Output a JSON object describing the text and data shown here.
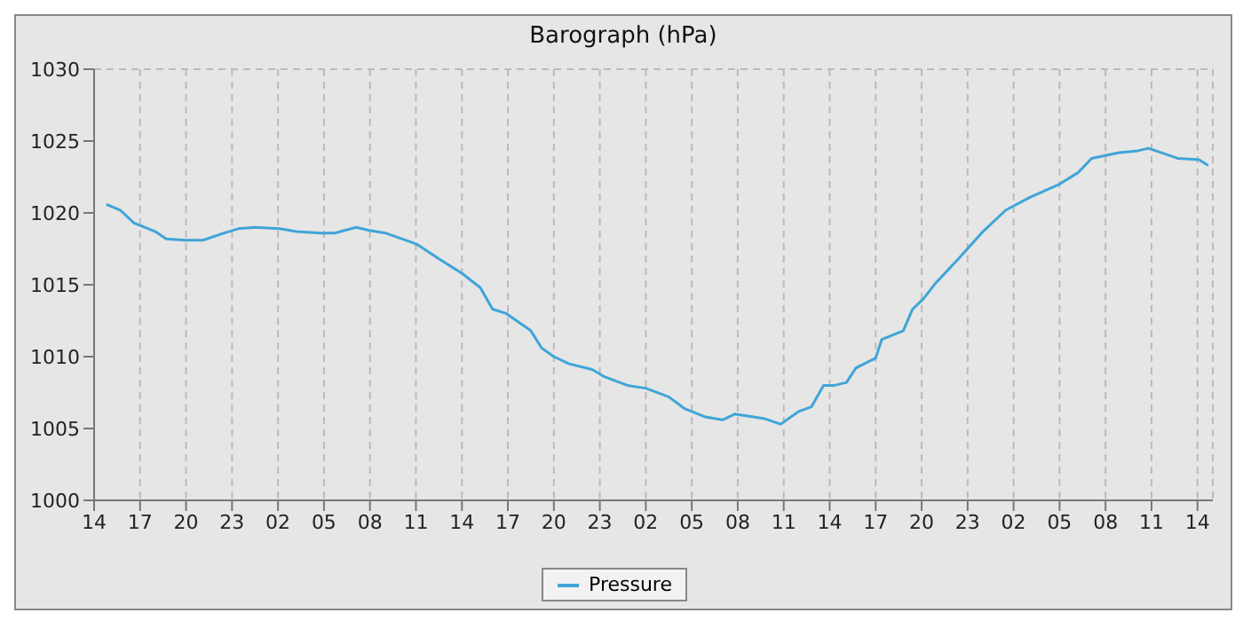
{
  "chart_data": {
    "type": "line",
    "title": "Barograph (hPa)",
    "x": [
      "--01-01T14:48",
      "--01-01T15:42",
      "--01-01T16:36",
      "--01-01T18:00",
      "--01-01T18:42",
      "--01-01T19:54",
      "--01-01T21:06",
      "--01-01T22:12",
      "--01-01T23:24",
      "--01-02T00:30",
      "--01-02T02:06",
      "--01-02T03:12",
      "--01-02T04:48",
      "--01-02T05:42",
      "--01-02T07:06",
      "--01-02T07:54",
      "--01-02T09:00",
      "--01-02T10:36",
      "--01-02T11:06",
      "--01-02T12:30",
      "--01-02T14:00",
      "--01-02T15:12",
      "--01-02T16:00",
      "--01-02T16:54",
      "--01-02T18:30",
      "--01-02T19:12",
      "--01-02T20:00",
      "--01-02T21:00",
      "--01-02T22:30",
      "--01-02T23:18",
      "--01-03T00:48",
      "--01-03T02:00",
      "--01-03T03:00",
      "--01-03T03:30",
      "--01-03T04:30",
      "--01-03T05:54",
      "--01-03T07:00",
      "--01-03T07:48",
      "--01-03T09:42",
      "--01-03T10:48",
      "--01-03T12:00",
      "--01-03T12:48",
      "--01-03T13:36",
      "--01-03T14:18",
      "--01-03T15:06",
      "--01-03T15:42",
      "--01-03T17:00",
      "--01-03T17:24",
      "--01-03T18:48",
      "--01-03T19:24",
      "--01-03T20:06",
      "--01-03T20:54",
      "--01-03T22:24",
      "--01-04T00:00",
      "--01-04T01:30",
      "--01-04T03:06",
      "--01-04T05:00",
      "--01-04T06:12",
      "--01-04T07:06",
      "--01-04T08:54",
      "--01-04T10:00",
      "--01-04T10:48",
      "--01-04T12:42",
      "--01-04T14:06",
      "--01-04T14:42"
    ],
    "series": [
      {
        "name": "Pressure",
        "color": "#3fa5d8",
        "values": [
          1020.6,
          1020.2,
          1019.3,
          1018.7,
          1018.2,
          1018.1,
          1018.1,
          1018.5,
          1018.9,
          1019.0,
          1018.9,
          1018.7,
          1018.6,
          1018.6,
          1019.0,
          1018.8,
          1018.6,
          1018.0,
          1017.8,
          1016.8,
          1015.8,
          1014.8,
          1013.3,
          1013.0,
          1011.8,
          1010.6,
          1010.0,
          1009.5,
          1009.1,
          1008.6,
          1008.0,
          1007.8,
          1007.4,
          1007.2,
          1006.4,
          1005.8,
          1005.6,
          1006.0,
          1005.7,
          1005.3,
          1006.2,
          1006.5,
          1008.0,
          1008.0,
          1008.2,
          1009.2,
          1009.9,
          1011.2,
          1011.8,
          1013.3,
          1014.0,
          1015.1,
          1016.8,
          1018.7,
          1020.2,
          1021.1,
          1022.0,
          1022.8,
          1023.8,
          1024.2,
          1024.3,
          1024.5,
          1023.8,
          1023.7,
          1023.3
        ]
      }
    ],
    "xlim": [
      "--01-01T14:00",
      "--01-04T15:00"
    ],
    "xticks": [
      {
        "value": "--01-01T14:00",
        "label": "14"
      },
      {
        "value": "--01-01T17:00",
        "label": "17"
      },
      {
        "value": "--01-01T20:00",
        "label": "20"
      },
      {
        "value": "--01-01T23:00",
        "label": "23"
      },
      {
        "value": "--01-02T02:00",
        "label": "02"
      },
      {
        "value": "--01-02T05:00",
        "label": "05"
      },
      {
        "value": "--01-02T08:00",
        "label": "08"
      },
      {
        "value": "--01-02T11:00",
        "label": "11"
      },
      {
        "value": "--01-02T14:00",
        "label": "14"
      },
      {
        "value": "--01-02T17:00",
        "label": "17"
      },
      {
        "value": "--01-02T20:00",
        "label": "20"
      },
      {
        "value": "--01-02T23:00",
        "label": "23"
      },
      {
        "value": "--01-03T02:00",
        "label": "02"
      },
      {
        "value": "--01-03T05:00",
        "label": "05"
      },
      {
        "value": "--01-03T08:00",
        "label": "08"
      },
      {
        "value": "--01-03T11:00",
        "label": "11"
      },
      {
        "value": "--01-03T14:00",
        "label": "14"
      },
      {
        "value": "--01-03T17:00",
        "label": "17"
      },
      {
        "value": "--01-03T20:00",
        "label": "20"
      },
      {
        "value": "--01-03T23:00",
        "label": "23"
      },
      {
        "value": "--01-04T02:00",
        "label": "02"
      },
      {
        "value": "--01-04T05:00",
        "label": "05"
      },
      {
        "value": "--01-04T08:00",
        "label": "08"
      },
      {
        "value": "--01-04T11:00",
        "label": "11"
      },
      {
        "value": "--01-04T14:00",
        "label": "14"
      }
    ],
    "ylim": [
      1000,
      1030
    ],
    "yticks": [
      1000,
      1005,
      1010,
      1015,
      1020,
      1025,
      1030
    ],
    "grid": true,
    "legend": "bottom",
    "marker": "none",
    "line_style": "solid"
  }
}
